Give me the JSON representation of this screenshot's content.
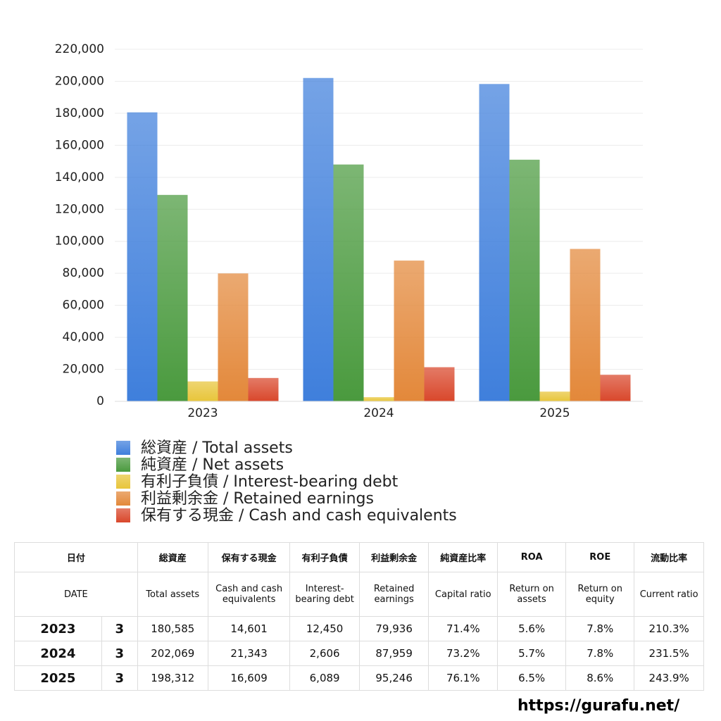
{
  "chart_data": {
    "type": "bar",
    "categories": [
      "2023",
      "2024",
      "2025"
    ],
    "series": [
      {
        "name": "総資産 / Total assets",
        "color": "#3f7fdc",
        "values": [
          180585,
          202069,
          198312
        ]
      },
      {
        "name": "純資産 / Net assets",
        "color": "#4a9a3e",
        "values": [
          129000,
          148000,
          151000
        ]
      },
      {
        "name": "有利子負債 / Interest-bearing debt",
        "color": "#e8c53a",
        "values": [
          12450,
          2606,
          6089
        ]
      },
      {
        "name": "利益剰余金 / Retained earnings",
        "color": "#e3883a",
        "values": [
          79936,
          87959,
          95246
        ]
      },
      {
        "name": "保有する現金 /  Cash and cash equivalents",
        "color": "#d9472b",
        "values": [
          14601,
          21343,
          16609
        ]
      }
    ],
    "ylim": [
      0,
      220000
    ],
    "yticks": [
      0,
      {
        "value": 20000,
        "label": "20,000"
      },
      {
        "value": 40000,
        "label": "40,000"
      },
      {
        "value": 60000,
        "label": "60,000"
      },
      {
        "value": 80000,
        "label": "80,000"
      },
      {
        "value": 100000,
        "label": "100,000"
      },
      {
        "value": 120000,
        "label": "120,000"
      },
      {
        "value": 140000,
        "label": "140,000"
      },
      {
        "value": 160000,
        "label": "160,000"
      },
      {
        "value": 180000,
        "label": "180,000"
      },
      {
        "value": 200000,
        "label": "200,000"
      },
      {
        "value": 220000,
        "label": "220,000"
      }
    ],
    "grid": true,
    "legend": "bottom"
  },
  "table": {
    "header_jp": [
      "日付",
      "総資産",
      "保有する現金",
      "有利子負債",
      "利益剰余金",
      "純資産比率",
      "ROA",
      "ROE",
      "流動比率"
    ],
    "header_en": [
      "DATE",
      "Total assets",
      "Cash and cash equivalents",
      "Interest-bearing debt",
      "Retained earnings",
      "Capital ratio",
      "Return on assets",
      "Return on equity",
      "Current ratio"
    ],
    "rows": [
      [
        "2023",
        "3",
        "180,585",
        "14,601",
        "12,450",
        "79,936",
        "71.4%",
        "5.6%",
        "7.8%",
        "210.3%"
      ],
      [
        "2024",
        "3",
        "202,069",
        "21,343",
        "2,606",
        "87,959",
        "73.2%",
        "5.7%",
        "7.8%",
        "231.5%"
      ],
      [
        "2025",
        "3",
        "198,312",
        "16,609",
        "6,089",
        "95,246",
        "76.1%",
        "6.5%",
        "8.6%",
        "243.9%"
      ]
    ]
  },
  "footer": {
    "url": "https://gurafu.net/"
  }
}
